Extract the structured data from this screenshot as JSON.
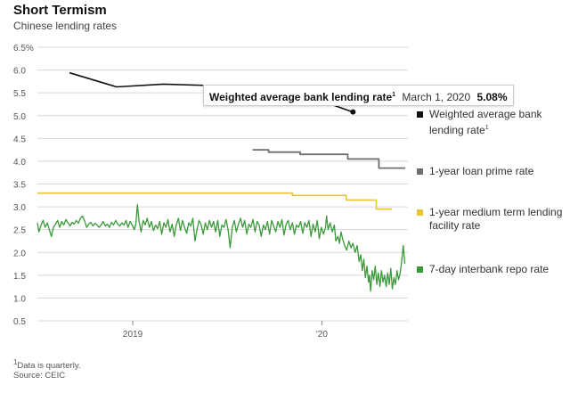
{
  "header": {
    "title": "Short Termism",
    "subtitle": "Chinese lending rates"
  },
  "tooltip": {
    "series": "Weighted average bank lending rate",
    "marker": "1",
    "date": "March 1, 2020",
    "value": "5.08%"
  },
  "footnotes": {
    "note_marker": "1",
    "note": "Data is quarterly.",
    "source": "Source: CEIC"
  },
  "colors": {
    "weighted": "#111111",
    "lpr": "#6e6e6e",
    "mlf": "#e8c23a",
    "repo": "#3a9a3a",
    "grid": "#d8d8d8"
  },
  "chart_data": {
    "type": "line",
    "title": "Short Termism",
    "subtitle": "Chinese lending rates",
    "ylim": [
      0.5,
      6.5
    ],
    "yticks": [
      "6.5%",
      "6.0",
      "5.5",
      "5.0",
      "4.5",
      "4.0",
      "3.5",
      "3.0",
      "2.5",
      "2.0",
      "1.5",
      "1.0",
      "0.5"
    ],
    "ytick_values": [
      6.5,
      6.0,
      5.5,
      5.0,
      4.5,
      4.0,
      3.5,
      3.0,
      2.5,
      2.0,
      1.5,
      1.0,
      0.5
    ],
    "xlim": [
      "2018-07-01",
      "2020-06-15"
    ],
    "xticks": [
      {
        "label": "2019",
        "date": "2019-01-01"
      },
      {
        "label": "'20",
        "date": "2020-01-01"
      }
    ],
    "grid": true,
    "legend_position": "right",
    "series": [
      {
        "name": "Weighted average bank lending rate",
        "marker": "1",
        "key": "weighted",
        "step": false,
        "points": [
          [
            "2018-09-01",
            5.94
          ],
          [
            "2018-12-01",
            5.63
          ],
          [
            "2019-03-01",
            5.69
          ],
          [
            "2019-06-01",
            5.66
          ],
          [
            "2019-09-01",
            5.62
          ],
          [
            "2019-12-01",
            5.44
          ],
          [
            "2020-03-01",
            5.08
          ]
        ]
      },
      {
        "name": "1-year loan prime rate",
        "key": "lpr",
        "step": true,
        "points": [
          [
            "2019-08-20",
            4.25
          ],
          [
            "2019-09-20",
            4.2
          ],
          [
            "2019-11-20",
            4.15
          ],
          [
            "2020-02-20",
            4.05
          ],
          [
            "2020-04-20",
            3.85
          ],
          [
            "2020-06-10",
            3.85
          ]
        ]
      },
      {
        "name": "1-year medium term lending facility rate",
        "key": "mlf",
        "step": true,
        "points": [
          [
            "2018-07-01",
            3.3
          ],
          [
            "2019-11-05",
            3.25
          ],
          [
            "2020-02-17",
            3.15
          ],
          [
            "2020-04-15",
            2.95
          ],
          [
            "2020-05-15",
            2.95
          ]
        ]
      },
      {
        "name": "7-day interbank repo rate",
        "key": "repo",
        "step": false,
        "points": [
          [
            "2018-07-01",
            2.65
          ],
          [
            "2018-07-04",
            2.45
          ],
          [
            "2018-07-08",
            2.6
          ],
          [
            "2018-07-12",
            2.7
          ],
          [
            "2018-07-16",
            2.55
          ],
          [
            "2018-07-20",
            2.65
          ],
          [
            "2018-07-24",
            2.5
          ],
          [
            "2018-07-28",
            2.35
          ],
          [
            "2018-08-01",
            2.55
          ],
          [
            "2018-08-05",
            2.62
          ],
          [
            "2018-08-09",
            2.7
          ],
          [
            "2018-08-13",
            2.55
          ],
          [
            "2018-08-17",
            2.68
          ],
          [
            "2018-08-21",
            2.6
          ],
          [
            "2018-08-25",
            2.72
          ],
          [
            "2018-08-29",
            2.65
          ],
          [
            "2018-09-02",
            2.58
          ],
          [
            "2018-09-06",
            2.66
          ],
          [
            "2018-09-10",
            2.62
          ],
          [
            "2018-09-14",
            2.7
          ],
          [
            "2018-09-18",
            2.64
          ],
          [
            "2018-09-22",
            2.75
          ],
          [
            "2018-09-26",
            2.8
          ],
          [
            "2018-09-30",
            2.7
          ],
          [
            "2018-10-04",
            2.55
          ],
          [
            "2018-10-08",
            2.62
          ],
          [
            "2018-10-12",
            2.66
          ],
          [
            "2018-10-16",
            2.58
          ],
          [
            "2018-10-20",
            2.64
          ],
          [
            "2018-10-24",
            2.6
          ],
          [
            "2018-10-28",
            2.55
          ],
          [
            "2018-11-01",
            2.6
          ],
          [
            "2018-11-05",
            2.68
          ],
          [
            "2018-11-09",
            2.58
          ],
          [
            "2018-11-13",
            2.62
          ],
          [
            "2018-11-17",
            2.55
          ],
          [
            "2018-11-21",
            2.66
          ],
          [
            "2018-11-25",
            2.6
          ],
          [
            "2018-11-29",
            2.7
          ],
          [
            "2018-12-03",
            2.62
          ],
          [
            "2018-12-07",
            2.58
          ],
          [
            "2018-12-11",
            2.65
          ],
          [
            "2018-12-15",
            2.6
          ],
          [
            "2018-12-19",
            2.7
          ],
          [
            "2018-12-23",
            2.55
          ],
          [
            "2018-12-27",
            2.68
          ],
          [
            "2018-12-31",
            2.6
          ],
          [
            "2019-01-04",
            2.5
          ],
          [
            "2019-01-07",
            2.62
          ],
          [
            "2019-01-10",
            3.05
          ],
          [
            "2019-01-13",
            2.7
          ],
          [
            "2019-01-17",
            2.45
          ],
          [
            "2019-01-21",
            2.7
          ],
          [
            "2019-01-25",
            2.6
          ],
          [
            "2019-01-29",
            2.75
          ],
          [
            "2019-02-02",
            2.55
          ],
          [
            "2019-02-06",
            2.68
          ],
          [
            "2019-02-10",
            2.48
          ],
          [
            "2019-02-14",
            2.6
          ],
          [
            "2019-02-18",
            2.52
          ],
          [
            "2019-02-22",
            2.68
          ],
          [
            "2019-02-26",
            2.4
          ],
          [
            "2019-03-02",
            2.65
          ],
          [
            "2019-03-06",
            2.55
          ],
          [
            "2019-03-10",
            2.72
          ],
          [
            "2019-03-14",
            2.45
          ],
          [
            "2019-03-18",
            2.62
          ],
          [
            "2019-03-22",
            2.35
          ],
          [
            "2019-03-26",
            2.6
          ],
          [
            "2019-03-30",
            2.75
          ],
          [
            "2019-04-03",
            2.48
          ],
          [
            "2019-04-07",
            2.7
          ],
          [
            "2019-04-11",
            2.55
          ],
          [
            "2019-04-15",
            2.42
          ],
          [
            "2019-04-19",
            2.65
          ],
          [
            "2019-04-23",
            2.58
          ],
          [
            "2019-04-27",
            2.75
          ],
          [
            "2019-05-01",
            2.25
          ],
          [
            "2019-05-05",
            2.5
          ],
          [
            "2019-05-09",
            2.7
          ],
          [
            "2019-05-13",
            2.6
          ],
          [
            "2019-05-17",
            2.4
          ],
          [
            "2019-05-21",
            2.65
          ],
          [
            "2019-05-25",
            2.5
          ],
          [
            "2019-05-29",
            2.7
          ],
          [
            "2019-06-02",
            2.55
          ],
          [
            "2019-06-06",
            2.68
          ],
          [
            "2019-06-10",
            2.45
          ],
          [
            "2019-06-14",
            2.7
          ],
          [
            "2019-06-18",
            2.35
          ],
          [
            "2019-06-22",
            2.6
          ],
          [
            "2019-06-26",
            2.55
          ],
          [
            "2019-06-30",
            2.72
          ],
          [
            "2019-07-04",
            2.5
          ],
          [
            "2019-07-08",
            2.1
          ],
          [
            "2019-07-12",
            2.55
          ],
          [
            "2019-07-16",
            2.7
          ],
          [
            "2019-07-20",
            2.45
          ],
          [
            "2019-07-24",
            2.62
          ],
          [
            "2019-07-28",
            2.75
          ],
          [
            "2019-08-01",
            2.55
          ],
          [
            "2019-08-05",
            2.7
          ],
          [
            "2019-08-09",
            2.4
          ],
          [
            "2019-08-13",
            2.62
          ],
          [
            "2019-08-17",
            2.55
          ],
          [
            "2019-08-21",
            2.72
          ],
          [
            "2019-08-25",
            2.45
          ],
          [
            "2019-08-29",
            2.68
          ],
          [
            "2019-09-02",
            2.6
          ],
          [
            "2019-09-06",
            2.35
          ],
          [
            "2019-09-10",
            2.6
          ],
          [
            "2019-09-14",
            2.5
          ],
          [
            "2019-09-18",
            2.68
          ],
          [
            "2019-09-22",
            2.4
          ],
          [
            "2019-09-26",
            2.7
          ],
          [
            "2019-09-30",
            2.58
          ],
          [
            "2019-10-04",
            2.45
          ],
          [
            "2019-10-08",
            2.68
          ],
          [
            "2019-10-12",
            2.55
          ],
          [
            "2019-10-16",
            2.72
          ],
          [
            "2019-10-20",
            2.38
          ],
          [
            "2019-10-24",
            2.62
          ],
          [
            "2019-10-28",
            2.7
          ],
          [
            "2019-11-01",
            2.5
          ],
          [
            "2019-11-05",
            2.65
          ],
          [
            "2019-11-09",
            2.4
          ],
          [
            "2019-11-13",
            2.6
          ],
          [
            "2019-11-17",
            2.55
          ],
          [
            "2019-11-21",
            2.68
          ],
          [
            "2019-11-25",
            2.42
          ],
          [
            "2019-11-29",
            2.65
          ],
          [
            "2019-12-03",
            2.55
          ],
          [
            "2019-12-07",
            2.7
          ],
          [
            "2019-12-11",
            2.35
          ],
          [
            "2019-12-15",
            2.62
          ],
          [
            "2019-12-19",
            2.45
          ],
          [
            "2019-12-23",
            2.7
          ],
          [
            "2019-12-27",
            2.3
          ],
          [
            "2019-12-31",
            2.55
          ],
          [
            "2020-01-04",
            2.4
          ],
          [
            "2020-01-08",
            2.55
          ],
          [
            "2020-01-10",
            2.8
          ],
          [
            "2020-01-13",
            2.5
          ],
          [
            "2020-01-17",
            2.65
          ],
          [
            "2020-01-21",
            2.45
          ],
          [
            "2020-01-25",
            2.6
          ],
          [
            "2020-01-28",
            2.25
          ],
          [
            "2020-02-01",
            2.35
          ],
          [
            "2020-02-04",
            2.2
          ],
          [
            "2020-02-07",
            2.45
          ],
          [
            "2020-02-10",
            2.3
          ],
          [
            "2020-02-14",
            2.15
          ],
          [
            "2020-02-18",
            2.05
          ],
          [
            "2020-02-22",
            2.25
          ],
          [
            "2020-02-26",
            2.1
          ],
          [
            "2020-03-01",
            2.2
          ],
          [
            "2020-03-05",
            2.0
          ],
          [
            "2020-03-09",
            2.15
          ],
          [
            "2020-03-13",
            1.8
          ],
          [
            "2020-03-16",
            1.95
          ],
          [
            "2020-03-19",
            1.6
          ],
          [
            "2020-03-22",
            1.85
          ],
          [
            "2020-03-25",
            1.45
          ],
          [
            "2020-03-28",
            1.7
          ],
          [
            "2020-03-31",
            1.35
          ],
          [
            "2020-04-02",
            1.5
          ],
          [
            "2020-04-04",
            1.15
          ],
          [
            "2020-04-07",
            1.6
          ],
          [
            "2020-04-10",
            1.4
          ],
          [
            "2020-04-13",
            1.7
          ],
          [
            "2020-04-16",
            1.3
          ],
          [
            "2020-04-19",
            1.55
          ],
          [
            "2020-04-22",
            1.25
          ],
          [
            "2020-04-25",
            1.6
          ],
          [
            "2020-04-28",
            1.35
          ],
          [
            "2020-05-01",
            1.5
          ],
          [
            "2020-05-04",
            1.25
          ],
          [
            "2020-05-07",
            1.55
          ],
          [
            "2020-05-10",
            1.3
          ],
          [
            "2020-05-13",
            1.65
          ],
          [
            "2020-05-16",
            1.2
          ],
          [
            "2020-05-19",
            1.45
          ],
          [
            "2020-05-22",
            1.3
          ],
          [
            "2020-05-25",
            1.6
          ],
          [
            "2020-05-28",
            1.4
          ],
          [
            "2020-05-31",
            1.55
          ],
          [
            "2020-06-03",
            1.8
          ],
          [
            "2020-06-06",
            2.15
          ],
          [
            "2020-06-09",
            1.75
          ]
        ]
      }
    ]
  }
}
